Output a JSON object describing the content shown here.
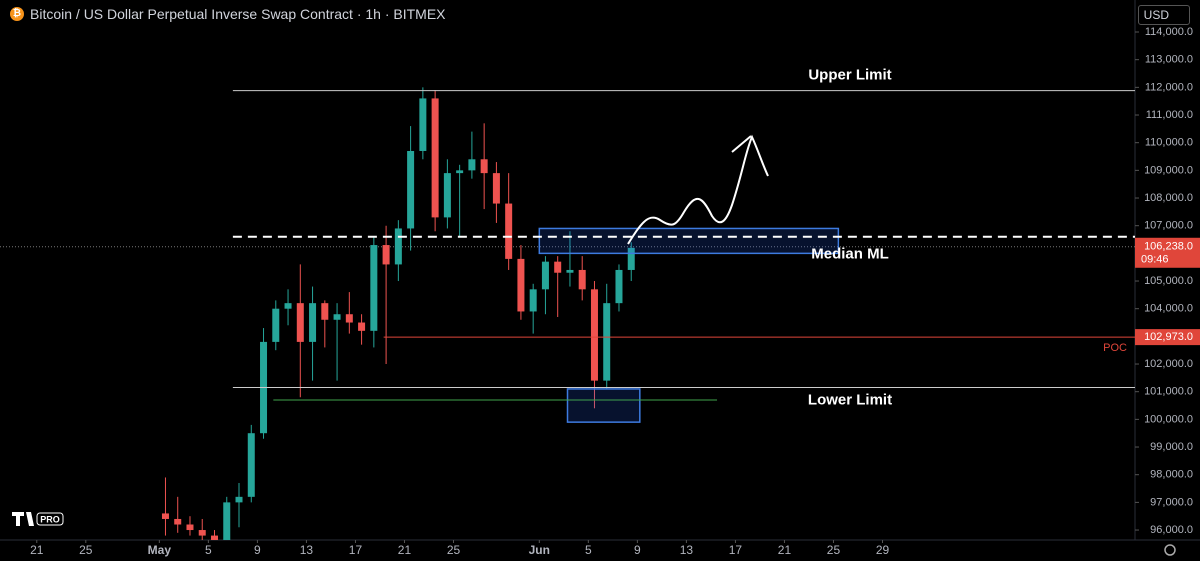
{
  "header": {
    "title": "Bitcoin / US Dollar Perpetual Inverse Swap Contract · 1h · BITMEX",
    "currency": "USD",
    "logo_badge": "PRO"
  },
  "chart_data": {
    "type": "candlestick",
    "x": [
      10,
      11,
      12,
      13,
      14,
      15,
      16,
      17,
      18,
      19,
      20,
      21,
      22,
      23,
      24,
      25,
      26,
      27,
      28,
      29,
      30,
      31,
      32,
      33,
      34,
      35,
      36,
      37,
      38,
      39,
      40,
      41,
      42,
      43,
      44,
      45,
      46,
      47,
      48
    ],
    "open": [
      96600,
      96400,
      96200,
      96000,
      95800,
      95600,
      97000,
      97200,
      99500,
      102800,
      104000,
      104200,
      102800,
      104200,
      103600,
      103800,
      103500,
      103200,
      106300,
      105600,
      106900,
      109700,
      111600,
      107300,
      108900,
      109000,
      109400,
      108900,
      107800,
      105800,
      103900,
      104700,
      105700,
      105300,
      105400,
      104700,
      101400,
      104200,
      105400
    ],
    "high": [
      97900,
      97200,
      96500,
      96400,
      96000,
      97200,
      97700,
      99800,
      103300,
      104300,
      104700,
      105600,
      104800,
      104300,
      104200,
      104600,
      103800,
      106600,
      107000,
      107200,
      110600,
      112000,
      111900,
      109400,
      109200,
      110400,
      110700,
      109300,
      108900,
      106300,
      104900,
      105900,
      105900,
      106800,
      105900,
      105000,
      104900,
      105600,
      106400
    ],
    "low": [
      95800,
      95900,
      95800,
      95500,
      95300,
      95500,
      96100,
      97000,
      99300,
      102500,
      103400,
      100800,
      101400,
      102600,
      101400,
      103100,
      102700,
      102600,
      102000,
      105000,
      106100,
      109400,
      106800,
      106900,
      106600,
      108700,
      107600,
      107100,
      105400,
      103600,
      103100,
      103800,
      103700,
      104800,
      104300,
      100400,
      101100,
      103900,
      105000
    ],
    "close": [
      96400,
      96200,
      96000,
      95800,
      95600,
      97000,
      97200,
      99500,
      102800,
      104000,
      104200,
      102800,
      104200,
      103600,
      103800,
      103500,
      103200,
      106300,
      105600,
      106900,
      109700,
      111600,
      107300,
      108900,
      109000,
      109400,
      108900,
      107800,
      105800,
      103900,
      104700,
      105700,
      105300,
      105400,
      104700,
      101400,
      104200,
      105400,
      106200
    ],
    "up_color": "#26a69a",
    "down_color": "#ef5350",
    "xlim": [
      -3,
      89.6
    ],
    "xticks": [
      {
        "value": 0,
        "label": "21"
      },
      {
        "value": 4,
        "label": "25"
      },
      {
        "value": 10,
        "label": "May"
      },
      {
        "value": 14,
        "label": "5"
      },
      {
        "value": 18,
        "label": "9"
      },
      {
        "value": 22,
        "label": "13"
      },
      {
        "value": 26,
        "label": "17"
      },
      {
        "value": 30,
        "label": "21"
      },
      {
        "value": 34,
        "label": "25"
      },
      {
        "value": 41,
        "label": "Jun"
      },
      {
        "value": 45,
        "label": "5"
      },
      {
        "value": 49,
        "label": "9"
      },
      {
        "value": 53,
        "label": "13"
      },
      {
        "value": 57,
        "label": "17"
      },
      {
        "value": 61,
        "label": "21"
      },
      {
        "value": 65,
        "label": "25"
      },
      {
        "value": 69,
        "label": "29"
      }
    ],
    "ylim": [
      95640,
      115157
    ],
    "yticks": [
      {
        "value": 114000,
        "label": "114,000.0"
      },
      {
        "value": 113000,
        "label": "113,000.0"
      },
      {
        "value": 112000,
        "label": "112,000.0"
      },
      {
        "value": 111000,
        "label": "111,000.0"
      },
      {
        "value": 110000,
        "label": "110,000.0"
      },
      {
        "value": 109000,
        "label": "109,000.0"
      },
      {
        "value": 108000,
        "label": "108,000.0"
      },
      {
        "value": 107000,
        "label": "107,000.0"
      },
      {
        "value": 105000,
        "label": "105,000.0"
      },
      {
        "value": 104000,
        "label": "104,000.0"
      },
      {
        "value": 102000,
        "label": "102,000.0"
      },
      {
        "value": 101000,
        "label": "101,000.0"
      },
      {
        "value": 100000,
        "label": "100,000.0"
      },
      {
        "value": 99000,
        "label": "99,000.0"
      },
      {
        "value": 98000,
        "label": "98,000.0"
      },
      {
        "value": 97000,
        "label": "97,000.0"
      },
      {
        "value": 96000,
        "label": "96,000.0"
      }
    ],
    "levels": [
      {
        "label": "Upper Limit",
        "value": 111880,
        "start": 16,
        "style": "solid"
      },
      {
        "label": "Median ML",
        "value": 106600,
        "start": 16,
        "style": "dashed"
      },
      {
        "label": "Lower Limit",
        "value": 101150,
        "start": 16,
        "style": "solid"
      }
    ],
    "poc": {
      "label": "POC",
      "value": 102973,
      "value_label": "102,973.0",
      "start": 28.3,
      "color": "#e0463a"
    },
    "last_price": {
      "value": 106238,
      "value_label": "106,238.0",
      "countdown": "09:46",
      "color": "#e0463a"
    },
    "support_line": {
      "value": 100700,
      "x": [
        19.3,
        55.5
      ],
      "color": "#3fa34d"
    },
    "zones": [
      {
        "low": 106000,
        "high": 106900,
        "x": [
          41,
          65.4
        ]
      },
      {
        "low": 99900,
        "high": 101100,
        "x": [
          43.3,
          49.2
        ]
      }
    ]
  }
}
